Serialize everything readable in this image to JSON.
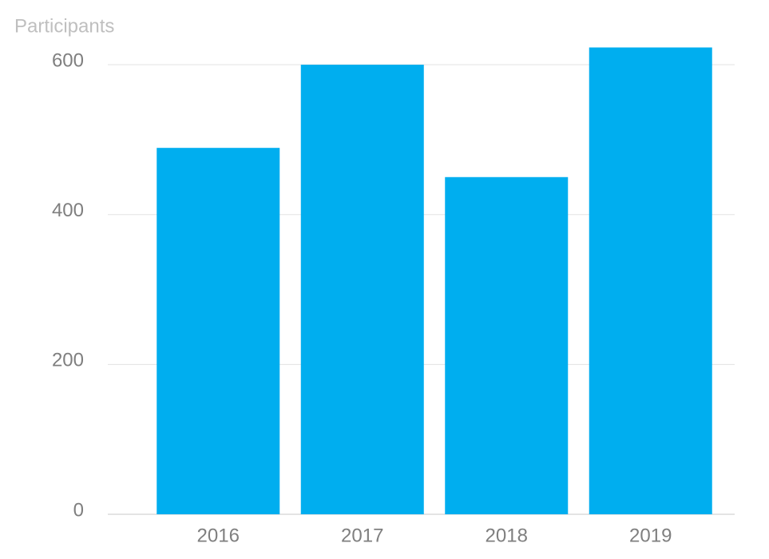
{
  "chart_data": {
    "type": "bar",
    "y_label": "Participants",
    "categories": [
      "2016",
      "2017",
      "2018",
      "2019"
    ],
    "values": [
      489,
      600,
      450,
      623
    ],
    "color": "#00aeef",
    "ylim": [
      0,
      640
    ],
    "yticks": [
      0,
      200,
      400,
      600
    ],
    "grid": true
  }
}
